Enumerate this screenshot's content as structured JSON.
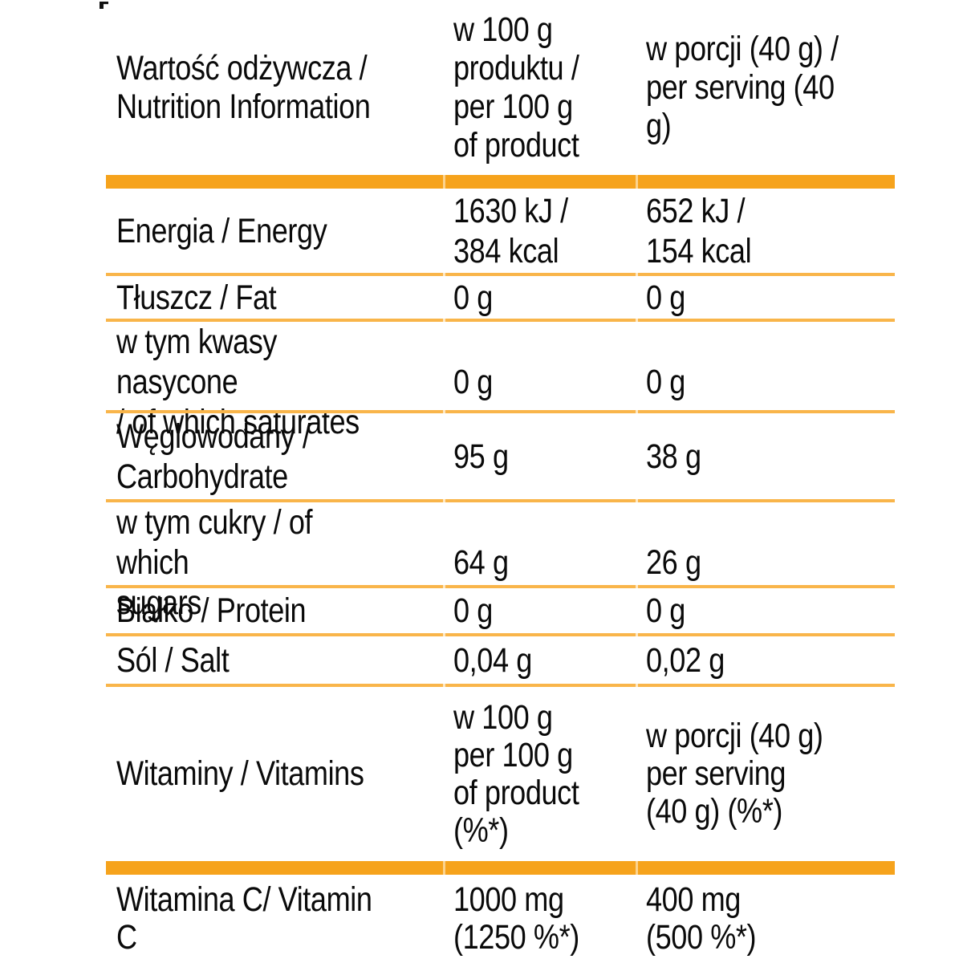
{
  "colors": {
    "thick_bar": "#F6A31C",
    "thin_line": "#F9B54A",
    "bar_tick": "#FBD38E",
    "line_tick": "#FDE7C2",
    "text": "#0a0a0a"
  },
  "header": {
    "col1": "Wartość odżywcza /\nNutrition Information",
    "col2": "w 100 g\nproduktu /\nper 100 g\nof product",
    "col3": "w porcji (40 g) /\nper serving (40 g)"
  },
  "rows": [
    {
      "label": "Energia / Energy",
      "per100": "1630 kJ /\n384 kcal",
      "serving": "652 kJ /\n154 kcal"
    },
    {
      "label": "Tłuszcz / Fat",
      "per100": "0 g",
      "serving": "0 g"
    },
    {
      "label": "w tym kwasy nasycone\n/ of which saturates",
      "per100": "0 g",
      "serving": "0 g"
    },
    {
      "label": "Węglowodany /\nCarbohydrate",
      "per100": "95 g",
      "serving": "38 g"
    },
    {
      "label": "w tym cukry / of which\nsugars",
      "per100": "64 g",
      "serving": "26 g"
    },
    {
      "label": "Białko / Protein",
      "per100": "0 g",
      "serving": "0 g"
    },
    {
      "label": "Sól / Salt",
      "per100": "0,04 g",
      "serving": "0,02 g"
    },
    {
      "label": "Witaminy / Vitamins",
      "per100": "w 100 g\nper 100 g\nof product\n(%*)",
      "serving": "w porcji (40 g)\nper serving\n(40 g) (%*)"
    }
  ],
  "vitamin_rows": [
    {
      "label": "Witamina C/ Vitamin C",
      "per100": "1000 mg\n(1250 %*)",
      "serving": "400 mg\n(500 %*)"
    }
  ]
}
